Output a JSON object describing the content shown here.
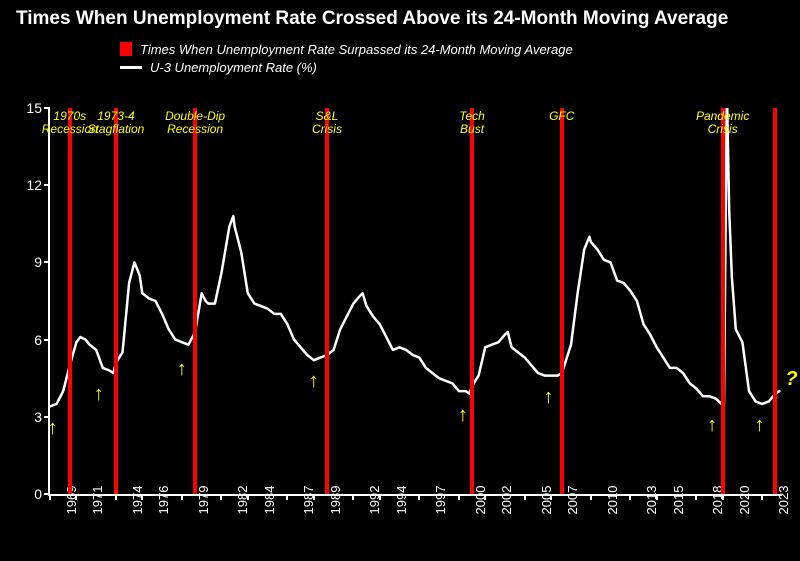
{
  "title": "Times When Unemployment Rate Crossed Above its 24-Month Moving Average",
  "title_fontsize": 19,
  "title_color": "#ffffff",
  "background_color": "#000000",
  "legend": {
    "bar_label": "Times When Unemployment Rate Surpassed its 24-Month Moving Average",
    "line_label": "U-3 Unemployment Rate (%)",
    "bar_color": "#ff0000",
    "line_color": "#ffffff"
  },
  "axes": {
    "axis_color": "#ffffff",
    "tick_fontsize": 14,
    "x_tick_fontsize": 13,
    "ylim": [
      0,
      15
    ],
    "yticks": [
      0,
      3,
      6,
      9,
      12,
      15
    ],
    "xlim": [
      1969,
      2024.5
    ],
    "xticks": [
      1969,
      1971,
      1974,
      1976,
      1979,
      1982,
      1984,
      1987,
      1989,
      1992,
      1994,
      1997,
      2000,
      2002,
      2005,
      2007,
      2010,
      2013,
      2015,
      2018,
      2020,
      2023
    ]
  },
  "events": [
    {
      "year": 1970.5,
      "label": "1970s\nRecession"
    },
    {
      "year": 1974.0,
      "label": "1973-4\nStagflation"
    },
    {
      "year": 1980.0,
      "label": "Double-Dip\nRecession"
    },
    {
      "year": 1990.0,
      "label": "S&L\nCrisis"
    },
    {
      "year": 2001.0,
      "label": "Tech\nBust"
    },
    {
      "year": 2007.8,
      "label": "GFC"
    },
    {
      "year": 2020.0,
      "label": "Pandemic\nCrisis"
    },
    {
      "year": 2024.0,
      "label": ""
    }
  ],
  "event_bar_color": "#ff0000",
  "event_label_color": "#ffff00",
  "event_label_fontsize": 12,
  "series": {
    "color": "#ffffff",
    "width": 2.5,
    "points": [
      [
        1969.0,
        3.4
      ],
      [
        1969.5,
        3.5
      ],
      [
        1970.0,
        4.0
      ],
      [
        1970.5,
        5.0
      ],
      [
        1971.0,
        5.9
      ],
      [
        1971.3,
        6.1
      ],
      [
        1971.7,
        6.0
      ],
      [
        1972.0,
        5.8
      ],
      [
        1972.5,
        5.6
      ],
      [
        1973.0,
        4.9
      ],
      [
        1973.5,
        4.8
      ],
      [
        1973.8,
        4.7
      ],
      [
        1974.0,
        5.1
      ],
      [
        1974.5,
        5.5
      ],
      [
        1975.0,
        8.2
      ],
      [
        1975.4,
        9.0
      ],
      [
        1975.8,
        8.5
      ],
      [
        1976.0,
        7.8
      ],
      [
        1976.5,
        7.6
      ],
      [
        1977.0,
        7.5
      ],
      [
        1977.5,
        7.0
      ],
      [
        1978.0,
        6.4
      ],
      [
        1978.5,
        6.0
      ],
      [
        1979.0,
        5.9
      ],
      [
        1979.5,
        5.8
      ],
      [
        1980.0,
        6.3
      ],
      [
        1980.5,
        7.8
      ],
      [
        1980.8,
        7.5
      ],
      [
        1981.0,
        7.4
      ],
      [
        1981.5,
        7.4
      ],
      [
        1982.0,
        8.6
      ],
      [
        1982.6,
        10.4
      ],
      [
        1982.9,
        10.8
      ],
      [
        1983.0,
        10.4
      ],
      [
        1983.5,
        9.4
      ],
      [
        1984.0,
        7.8
      ],
      [
        1984.5,
        7.4
      ],
      [
        1985.0,
        7.3
      ],
      [
        1985.5,
        7.2
      ],
      [
        1986.0,
        7.0
      ],
      [
        1986.5,
        7.0
      ],
      [
        1987.0,
        6.6
      ],
      [
        1987.5,
        6.0
      ],
      [
        1988.0,
        5.7
      ],
      [
        1988.5,
        5.4
      ],
      [
        1989.0,
        5.2
      ],
      [
        1989.5,
        5.3
      ],
      [
        1990.0,
        5.4
      ],
      [
        1990.5,
        5.6
      ],
      [
        1991.0,
        6.4
      ],
      [
        1991.5,
        6.9
      ],
      [
        1992.0,
        7.4
      ],
      [
        1992.5,
        7.7
      ],
      [
        1992.7,
        7.8
      ],
      [
        1993.0,
        7.3
      ],
      [
        1993.5,
        6.9
      ],
      [
        1994.0,
        6.6
      ],
      [
        1994.5,
        6.1
      ],
      [
        1995.0,
        5.6
      ],
      [
        1995.5,
        5.7
      ],
      [
        1996.0,
        5.6
      ],
      [
        1996.5,
        5.4
      ],
      [
        1997.0,
        5.3
      ],
      [
        1997.5,
        4.9
      ],
      [
        1998.0,
        4.7
      ],
      [
        1998.5,
        4.5
      ],
      [
        1999.0,
        4.4
      ],
      [
        1999.5,
        4.3
      ],
      [
        2000.0,
        4.0
      ],
      [
        2000.5,
        4.0
      ],
      [
        2000.8,
        3.9
      ],
      [
        2001.0,
        4.2
      ],
      [
        2001.5,
        4.6
      ],
      [
        2002.0,
        5.7
      ],
      [
        2002.5,
        5.8
      ],
      [
        2003.0,
        5.9
      ],
      [
        2003.5,
        6.2
      ],
      [
        2003.7,
        6.3
      ],
      [
        2004.0,
        5.7
      ],
      [
        2004.5,
        5.5
      ],
      [
        2005.0,
        5.3
      ],
      [
        2005.5,
        5.0
      ],
      [
        2006.0,
        4.7
      ],
      [
        2006.5,
        4.6
      ],
      [
        2007.0,
        4.6
      ],
      [
        2007.5,
        4.6
      ],
      [
        2007.8,
        4.7
      ],
      [
        2008.0,
        5.0
      ],
      [
        2008.5,
        5.8
      ],
      [
        2009.0,
        7.8
      ],
      [
        2009.5,
        9.5
      ],
      [
        2009.9,
        10.0
      ],
      [
        2010.0,
        9.8
      ],
      [
        2010.5,
        9.5
      ],
      [
        2011.0,
        9.1
      ],
      [
        2011.5,
        9.0
      ],
      [
        2012.0,
        8.3
      ],
      [
        2012.5,
        8.2
      ],
      [
        2013.0,
        7.9
      ],
      [
        2013.5,
        7.5
      ],
      [
        2014.0,
        6.6
      ],
      [
        2014.5,
        6.2
      ],
      [
        2015.0,
        5.7
      ],
      [
        2015.5,
        5.3
      ],
      [
        2016.0,
        4.9
      ],
      [
        2016.5,
        4.9
      ],
      [
        2017.0,
        4.7
      ],
      [
        2017.5,
        4.3
      ],
      [
        2018.0,
        4.1
      ],
      [
        2018.5,
        3.8
      ],
      [
        2019.0,
        3.8
      ],
      [
        2019.5,
        3.7
      ],
      [
        2019.9,
        3.5
      ],
      [
        2020.1,
        3.5
      ],
      [
        2020.3,
        14.7
      ],
      [
        2020.33,
        16.0
      ],
      [
        2020.5,
        11.0
      ],
      [
        2020.7,
        8.4
      ],
      [
        2021.0,
        6.4
      ],
      [
        2021.5,
        5.9
      ],
      [
        2022.0,
        4.0
      ],
      [
        2022.5,
        3.6
      ],
      [
        2023.0,
        3.5
      ],
      [
        2023.5,
        3.6
      ],
      [
        2024.0,
        3.9
      ],
      [
        2024.3,
        4.0
      ]
    ]
  },
  "arrows": [
    {
      "year": 1969.2,
      "y": 3.0
    },
    {
      "year": 1972.7,
      "y": 4.3
    },
    {
      "year": 1979.0,
      "y": 5.3
    },
    {
      "year": 1989.0,
      "y": 4.8
    },
    {
      "year": 2000.3,
      "y": 3.5
    },
    {
      "year": 2006.8,
      "y": 4.2
    },
    {
      "year": 2019.2,
      "y": 3.1
    },
    {
      "year": 2022.8,
      "y": 3.1
    }
  ],
  "arrow_color": "#ffff00",
  "question_mark": {
    "text": "?",
    "year": 2024.3,
    "y": 4.5,
    "color": "#ffff00"
  }
}
